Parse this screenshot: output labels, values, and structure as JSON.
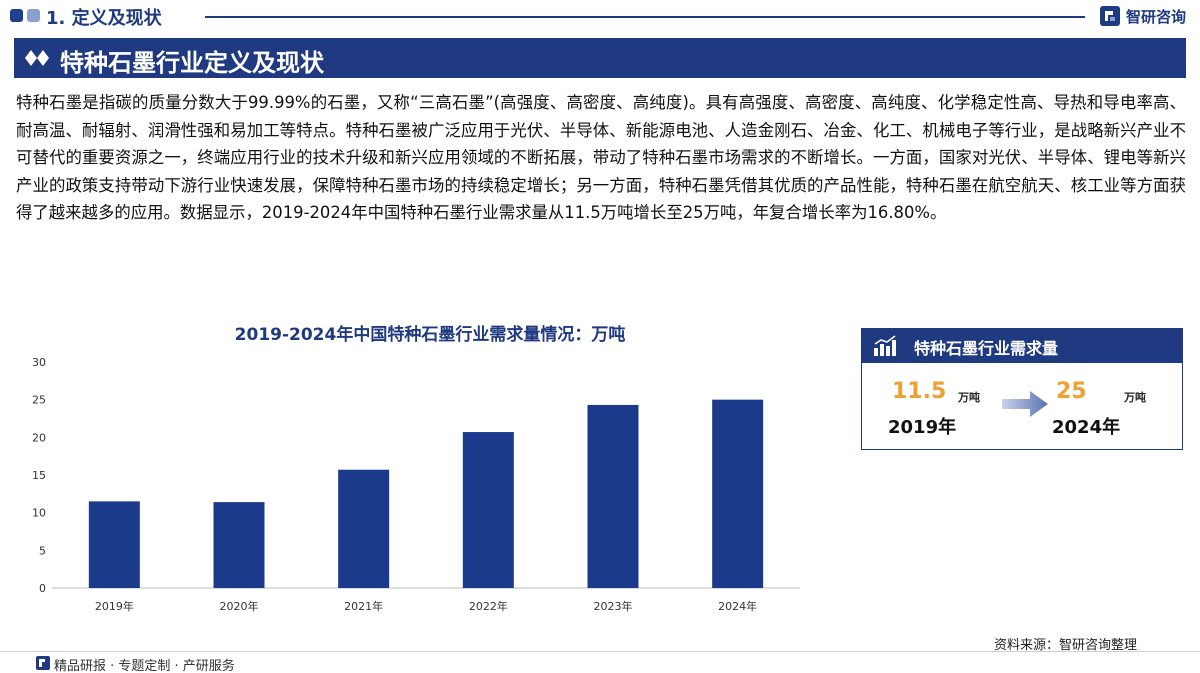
{
  "header": {
    "section_title": "1. 定义及现状",
    "brand_name": "智研咨询",
    "brand_color": "#1f3a80"
  },
  "banner": {
    "title": "特种石墨行业定义及现状",
    "icon": "diamond-icon"
  },
  "body": {
    "paragraph": "特种石墨是指碳的质量分数大于99.99%的石墨，又称“三高石墨”(高强度、高密度、高纯度)。具有高强度、高密度、高纯度、化学稳定性高、导热和导电率高、耐高温、耐辐射、润滑性强和易加工等特点。特种石墨被广泛应用于光伏、半导体、新能源电池、人造金刚石、冶金、化工、机械电子等行业，是战略新兴产业不可替代的重要资源之一，终端应用行业的技术升级和新兴应用领域的不断拓展，带动了特种石墨市场需求的不断增长。一方面，国家对光伏、半导体、锂电等新兴产业的政策支持带动下游行业快速发展，保障特种石墨市场的持续稳定增长；另一方面，特种石墨凭借其优质的产品性能，特种石墨在航空航天、核工业等方面获得了越来越多的应用。数据显示，2019-2024年中国特种石墨行业需求量从11.5万吨增长至25万吨，年复合增长率为16.80%。"
  },
  "chart_data": {
    "type": "bar",
    "title": "2019-2024年中国特种石墨行业需求量情况：万吨",
    "categories": [
      "2019年",
      "2020年",
      "2021年",
      "2022年",
      "2023年",
      "2024年"
    ],
    "values": [
      11.5,
      11.4,
      15.7,
      20.7,
      24.3,
      25.0
    ],
    "ylim": [
      0,
      30
    ],
    "yticks": [
      0,
      5,
      10,
      15,
      20,
      25,
      30
    ],
    "grid": false,
    "bar_color": "#1c3a8c"
  },
  "summary_card": {
    "title": "特种石墨行业需求量",
    "icon": "bar-chart-icon",
    "start": {
      "value": "11.5",
      "unit": "万吨",
      "year": "2019年"
    },
    "end": {
      "value": "25",
      "unit": "万吨",
      "year": "2024年"
    },
    "value_color": "#f0a030"
  },
  "footer": {
    "source": "资料来源：智研咨询整理",
    "tagline": "精品研报 · 专题定制 · 产研服务"
  }
}
